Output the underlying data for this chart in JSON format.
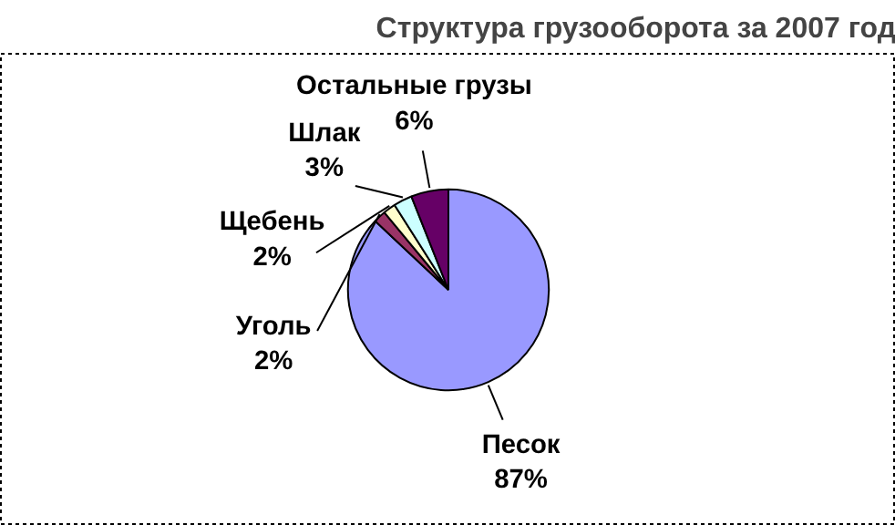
{
  "chart_data": {
    "type": "pie",
    "title": "Структура грузооборота за 2007 год",
    "categories": [
      "Песок",
      "Уголь",
      "Щебень",
      "Шлак",
      "Остальные грузы"
    ],
    "values": [
      87,
      2,
      2,
      3,
      6
    ],
    "value_labels": [
      "87%",
      "2%",
      "2%",
      "3%",
      "6%"
    ],
    "colors": [
      "#9999ff",
      "#993366",
      "#ffffcc",
      "#ccffff",
      "#660066"
    ]
  }
}
